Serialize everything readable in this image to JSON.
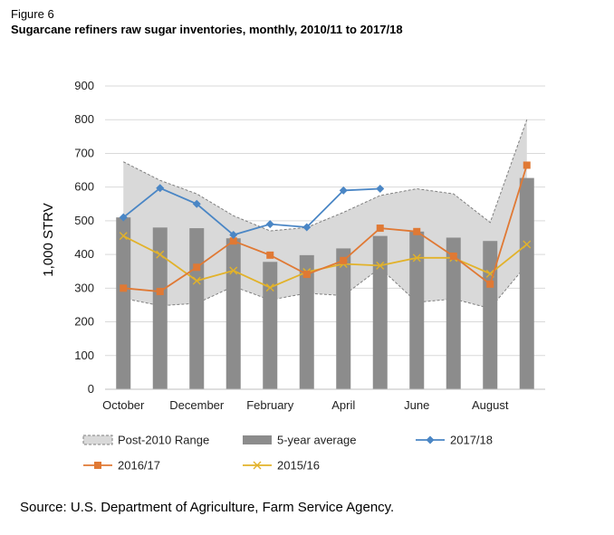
{
  "figure_label": "Figure 6",
  "title": "Sugarcane refiners raw sugar inventories, monthly,  2010/11 to 2017/18",
  "source": "Source: U.S. Department  of Agriculture, Farm Service Agency.",
  "chart_data": {
    "type": "bar",
    "categories": [
      "Oct",
      "Nov",
      "Dec",
      "Jan",
      "Feb",
      "Mar",
      "Apr",
      "May",
      "Jun",
      "Jul",
      "Aug",
      "Sep"
    ],
    "x_tick_labels": [
      "October",
      "",
      "December",
      "",
      "February",
      "",
      "April",
      "",
      "June",
      "",
      "August",
      ""
    ],
    "ylabel": "1,000 STRV",
    "ylim": [
      0,
      900
    ],
    "yticks": [
      0,
      100,
      200,
      300,
      400,
      500,
      600,
      700,
      800,
      900
    ],
    "grid": true,
    "legend_position": "bottom",
    "range_band": {
      "name": "Post-2010 Range",
      "upper": [
        675,
        620,
        580,
        515,
        470,
        480,
        525,
        575,
        595,
        580,
        495,
        800
      ],
      "lower": [
        270,
        248,
        255,
        305,
        265,
        285,
        278,
        360,
        258,
        268,
        240,
        370
      ],
      "fill": "#d9d9d9",
      "stroke": "#7f7f7f"
    },
    "series": [
      {
        "name": "5-year average",
        "kind": "bar",
        "color": "#8c8c8c",
        "values": [
          510,
          480,
          478,
          448,
          378,
          398,
          418,
          455,
          468,
          450,
          440,
          627
        ]
      },
      {
        "name": "2017/18",
        "kind": "line",
        "marker": "diamond",
        "color": "#4a86c5",
        "values": [
          510,
          597,
          550,
          458,
          490,
          481,
          590,
          595,
          null,
          null,
          null,
          null
        ]
      },
      {
        "name": "2016/17",
        "kind": "line",
        "marker": "square",
        "color": "#e07934",
        "values": [
          300,
          290,
          362,
          440,
          398,
          341,
          382,
          478,
          468,
          395,
          312,
          665
        ]
      },
      {
        "name": "2015/16",
        "kind": "line",
        "marker": "x",
        "color": "#e2b22a",
        "values": [
          455,
          400,
          322,
          352,
          302,
          348,
          372,
          367,
          390,
          390,
          343,
          430
        ]
      }
    ]
  }
}
